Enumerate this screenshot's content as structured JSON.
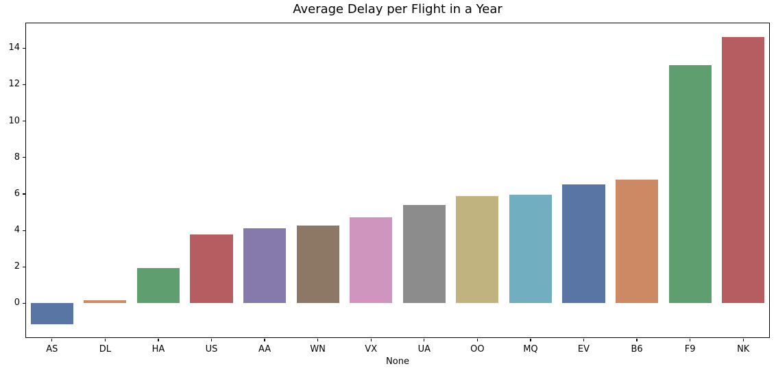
{
  "chart_data": {
    "type": "bar",
    "title": "Average Delay per Flight in a Year",
    "xlabel": "None",
    "ylabel": "",
    "categories": [
      "AS",
      "DL",
      "HA",
      "US",
      "AA",
      "WN",
      "VX",
      "UA",
      "OO",
      "MQ",
      "EV",
      "B6",
      "F9",
      "NK"
    ],
    "values": [
      -1.13,
      0.17,
      1.94,
      3.77,
      4.11,
      4.25,
      4.71,
      5.4,
      5.87,
      5.97,
      6.54,
      6.79,
      13.07,
      14.6
    ],
    "bar_colors": [
      "#5875A4",
      "#CC8963",
      "#5F9E6E",
      "#B55D60",
      "#857AAB",
      "#8D7866",
      "#D095BF",
      "#8C8C8C",
      "#C1B37F",
      "#71AEC0",
      "#5875A4",
      "#CC8963",
      "#5F9E6E",
      "#B55D60"
    ],
    "y_ticks": [
      0,
      2,
      4,
      6,
      8,
      10,
      12,
      14
    ],
    "ylim": [
      -1.9,
      15.4
    ],
    "bar_rel_width": 0.8,
    "grid": false,
    "legend_position": "none",
    "background_color": "#FFFFFF",
    "axis_color": "#000000",
    "text_color": "#000000"
  }
}
